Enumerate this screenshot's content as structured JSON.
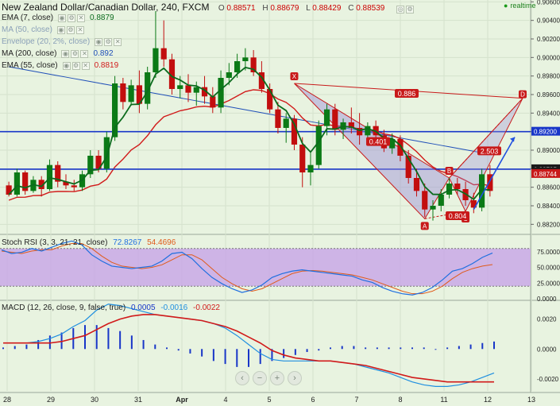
{
  "header": {
    "symbol_title": "New Zealand Dollar/Canadian Dollar, 240, FXCM",
    "open_label": "O",
    "open": "0.88571",
    "high_label": "H",
    "high": "0.88679",
    "low_label": "L",
    "low": "0.88429",
    "close_label": "C",
    "close": "0.88539",
    "realtime": "realtime"
  },
  "indicators": [
    {
      "label": "EMA (7, close)",
      "value": "0.8879",
      "color": "#0b6b1d"
    },
    {
      "label": "MA (50, close)",
      "value": "",
      "color": "#8aa0b8"
    },
    {
      "label": "Envelope (20, 2%, close)",
      "value": "",
      "color": "#8aa0b8"
    },
    {
      "label": "MA (200, close)",
      "value": "0.892",
      "color": "#1f4fb8"
    },
    {
      "label": "EMA (55, close)",
      "value": "0.8819",
      "color": "#d11a1a"
    }
  ],
  "price_axis": {
    "ticks": [
      "0.90600",
      "0.90400",
      "0.90200",
      "0.90000",
      "0.89800",
      "0.89600",
      "0.89400",
      "0.89200",
      "0.89000",
      "0.88800",
      "0.88600",
      "0.88400",
      "0.88200"
    ],
    "tags": [
      {
        "text": "0.89200",
        "value": 0.892,
        "color": "#1836c8"
      },
      {
        "text": "0.88795",
        "value": 0.88795,
        "color": "#1a1a1a"
      },
      {
        "text": "3:15:58",
        "value": 0.88765,
        "color": "#1a1a1a"
      },
      {
        "text": "0.88744",
        "value": 0.88744,
        "color": "#c81a1a"
      }
    ]
  },
  "time_axis": {
    "labels": [
      "28",
      "29",
      "30",
      "31",
      "Apr",
      "4",
      "5",
      "6",
      "7",
      "8",
      "11",
      "12",
      "13"
    ]
  },
  "pattern": {
    "points": [
      "X",
      "A",
      "B",
      "C",
      "D"
    ],
    "ratios": [
      "0.886",
      "0.401",
      "2.503",
      "0.804"
    ]
  },
  "stoch": {
    "label": "Stoch RSI (3, 3, 21, 21, close)",
    "k": "72.8267",
    "d": "54.4696",
    "ticks": [
      "75.0000",
      "50.0000",
      "25.0000",
      "0.0000"
    ]
  },
  "macd": {
    "label": "MACD (12, 26, close, 9, false, true)",
    "hist": "0.0005",
    "macd": "-0.0016",
    "signal": "-0.0022",
    "ticks": [
      "0.0020",
      "0.0000",
      "-0.0020"
    ]
  },
  "colors": {
    "background": "#e8f3e0",
    "bull": "#0b7a16",
    "bear": "#c20e0e",
    "pattern": "#c81a1a",
    "pattern_fill": "#9b8fd6",
    "hline": "#1836c8",
    "ema7": "#0b6b1d",
    "ema55": "#d11a1a",
    "ma200": "#1f4fb8",
    "stoch_k": "#1f6fe0",
    "stoch_d": "#e05a1a",
    "stoch_band": "#c9a8e6",
    "macd_line": "#1f8fe0",
    "signal_line": "#d11a1a",
    "hist": "#1836c8"
  },
  "chart_data": [
    {
      "type": "candlestick",
      "title": "New Zealand Dollar/Canadian Dollar, 240, FXCM",
      "ylim": [
        0.881,
        0.9062
      ],
      "horizontal_levels": [
        0.892,
        0.88795
      ],
      "candles": [
        [
          0.8862,
          0.8866,
          0.885,
          0.8852
        ],
        [
          0.8852,
          0.888,
          0.885,
          0.8876
        ],
        [
          0.8876,
          0.8878,
          0.8852,
          0.8856
        ],
        [
          0.8856,
          0.8872,
          0.8854,
          0.8868
        ],
        [
          0.8868,
          0.8872,
          0.885,
          0.8858
        ],
        [
          0.8858,
          0.889,
          0.8856,
          0.8884
        ],
        [
          0.8884,
          0.8888,
          0.886,
          0.8866
        ],
        [
          0.8866,
          0.8874,
          0.8858,
          0.8862
        ],
        [
          0.8862,
          0.8868,
          0.8856,
          0.886
        ],
        [
          0.886,
          0.8878,
          0.8856,
          0.8874
        ],
        [
          0.8874,
          0.89,
          0.887,
          0.8894
        ],
        [
          0.8894,
          0.89,
          0.8876,
          0.888
        ],
        [
          0.888,
          0.892,
          0.8876,
          0.8914
        ],
        [
          0.8914,
          0.898,
          0.891,
          0.8972
        ],
        [
          0.8972,
          0.8978,
          0.8944,
          0.8952
        ],
        [
          0.8952,
          0.8976,
          0.8948,
          0.897
        ],
        [
          0.897,
          0.8986,
          0.894,
          0.895
        ],
        [
          0.895,
          0.899,
          0.8944,
          0.8984
        ],
        [
          0.8984,
          0.905,
          0.8978,
          0.901
        ],
        [
          0.901,
          0.904,
          0.899,
          0.8998
        ],
        [
          0.8998,
          0.9004,
          0.896,
          0.8966
        ],
        [
          0.8966,
          0.898,
          0.8956,
          0.897
        ],
        [
          0.897,
          0.8982,
          0.8952,
          0.8962
        ],
        [
          0.8962,
          0.8974,
          0.8948,
          0.8968
        ],
        [
          0.8968,
          0.898,
          0.895,
          0.8958
        ],
        [
          0.8958,
          0.8968,
          0.894,
          0.8946
        ],
        [
          0.8946,
          0.8986,
          0.894,
          0.8978
        ],
        [
          0.8978,
          0.8994,
          0.897,
          0.8984
        ],
        [
          0.8984,
          0.9004,
          0.8978,
          0.8996
        ],
        [
          0.8996,
          0.901,
          0.8986,
          0.9
        ],
        [
          0.9,
          0.9008,
          0.898,
          0.8984
        ],
        [
          0.8984,
          0.8996,
          0.8962,
          0.8966
        ],
        [
          0.8966,
          0.8972,
          0.894,
          0.8944
        ],
        [
          0.8944,
          0.8952,
          0.8918,
          0.8924
        ],
        [
          0.8924,
          0.894,
          0.8908,
          0.8934
        ],
        [
          0.8934,
          0.8938,
          0.89,
          0.8906
        ],
        [
          0.8906,
          0.8914,
          0.886,
          0.8876
        ],
        [
          0.8876,
          0.8898,
          0.8862,
          0.8884
        ],
        [
          0.8884,
          0.8932,
          0.888,
          0.8926
        ],
        [
          0.8926,
          0.895,
          0.8916,
          0.8944
        ],
        [
          0.8944,
          0.895,
          0.8916,
          0.8922
        ],
        [
          0.8922,
          0.8934,
          0.8912,
          0.893
        ],
        [
          0.893,
          0.8946,
          0.8918,
          0.8924
        ],
        [
          0.8924,
          0.894,
          0.8906,
          0.8916
        ],
        [
          0.8916,
          0.893,
          0.8908,
          0.8926
        ],
        [
          0.8926,
          0.8932,
          0.8912,
          0.8916
        ],
        [
          0.8916,
          0.8922,
          0.8898,
          0.8902
        ],
        [
          0.8902,
          0.8918,
          0.8896,
          0.8912
        ],
        [
          0.8912,
          0.8916,
          0.8888,
          0.8894
        ],
        [
          0.8894,
          0.89,
          0.8864,
          0.887
        ],
        [
          0.887,
          0.888,
          0.885,
          0.8856
        ],
        [
          0.8856,
          0.8864,
          0.8828,
          0.8836
        ],
        [
          0.8836,
          0.8846,
          0.8824,
          0.884
        ],
        [
          0.884,
          0.8858,
          0.8834,
          0.8852
        ],
        [
          0.8852,
          0.887,
          0.8848,
          0.8864
        ],
        [
          0.8864,
          0.887,
          0.8852,
          0.8858
        ],
        [
          0.8858,
          0.8866,
          0.884,
          0.8846
        ],
        [
          0.8846,
          0.8854,
          0.8832,
          0.8838
        ],
        [
          0.8838,
          0.888,
          0.8834,
          0.8874
        ],
        [
          0.8874,
          0.8884,
          0.885,
          0.8856
        ]
      ]
    },
    {
      "type": "line",
      "title": "Stoch RSI (3, 3, 21, 21, close)",
      "ylim": [
        0,
        100
      ],
      "series": [
        {
          "name": "K",
          "values": [
            78,
            72,
            74,
            80,
            76,
            82,
            88,
            92,
            86,
            70,
            60,
            52,
            50,
            48,
            50,
            52,
            60,
            72,
            74,
            64,
            48,
            34,
            24,
            16,
            10,
            14,
            22,
            34,
            40,
            44,
            46,
            44,
            42,
            40,
            38,
            36,
            30,
            26,
            18,
            12,
            8,
            6,
            10,
            18,
            30,
            44,
            48,
            56,
            66,
            72.8
          ]
        },
        {
          "name": "D",
          "values": [
            76,
            74,
            72,
            76,
            78,
            78,
            84,
            88,
            88,
            80,
            68,
            58,
            52,
            50,
            48,
            50,
            54,
            62,
            70,
            70,
            62,
            48,
            34,
            24,
            16,
            12,
            16,
            24,
            32,
            40,
            44,
            45,
            44,
            42,
            40,
            38,
            34,
            30,
            24,
            18,
            12,
            8,
            8,
            12,
            20,
            32,
            42,
            48,
            52,
            54.5
          ]
        }
      ]
    },
    {
      "type": "bar",
      "title": "MACD (12, 26, close, 9, false, true)",
      "ylim": [
        -0.0028,
        0.0032
      ],
      "series": [
        {
          "name": "histogram",
          "values": [
            0.0001,
            0.0002,
            0.0003,
            0.0006,
            0.0009,
            0.0011,
            0.0014,
            0.0016,
            0.0016,
            0.0014,
            0.0012,
            0.0009,
            0.0006,
            0.0003,
            0.0001,
            -0.0001,
            -0.0003,
            -0.0005,
            -0.0008,
            -0.001,
            -0.0012,
            -0.0012,
            -0.001,
            -0.0008,
            -0.0006,
            -0.0004,
            -0.0002,
            -0.0001,
            0.0001,
            0.0002,
            0.0002,
            0.0001,
            0.0001,
            0.0001,
            0.0001,
            0.0001,
            0.0001,
            0.0,
            0.0001,
            0.0002,
            0.0003,
            0.0004,
            0.0005
          ]
        },
        {
          "name": "MACD",
          "values": [
            0.0004,
            0.0004,
            0.0004,
            0.0005,
            0.0007,
            0.001,
            0.0015,
            0.0019,
            0.0026,
            0.003,
            0.0029,
            0.0027,
            0.0025,
            0.0023,
            0.0022,
            0.0021,
            0.002,
            0.0019,
            0.0017,
            0.0014,
            0.0009,
            0.0003,
            -0.0003,
            -0.0007,
            -0.0008,
            -0.0008,
            -0.0008,
            -0.0008,
            -0.0008,
            -0.0009,
            -0.001,
            -0.0012,
            -0.0014,
            -0.0016,
            -0.0019,
            -0.0022,
            -0.0024,
            -0.0025,
            -0.0025,
            -0.0024,
            -0.0022,
            -0.0019,
            -0.0016
          ]
        },
        {
          "name": "Signal",
          "values": [
            0.0004,
            0.0004,
            0.0004,
            0.0004,
            0.0004,
            0.0005,
            0.0007,
            0.0009,
            0.0013,
            0.0017,
            0.002,
            0.0022,
            0.0023,
            0.0023,
            0.0022,
            0.0021,
            0.002,
            0.0019,
            0.0017,
            0.0015,
            0.0012,
            0.0008,
            0.0004,
            -0.0001,
            -0.0004,
            -0.0006,
            -0.0007,
            -0.0008,
            -0.0008,
            -0.0009,
            -0.001,
            -0.0011,
            -0.0013,
            -0.0015,
            -0.0017,
            -0.0019,
            -0.002,
            -0.0021,
            -0.0022,
            -0.0022,
            -0.0022,
            -0.0022,
            -0.0022
          ]
        }
      ]
    }
  ]
}
